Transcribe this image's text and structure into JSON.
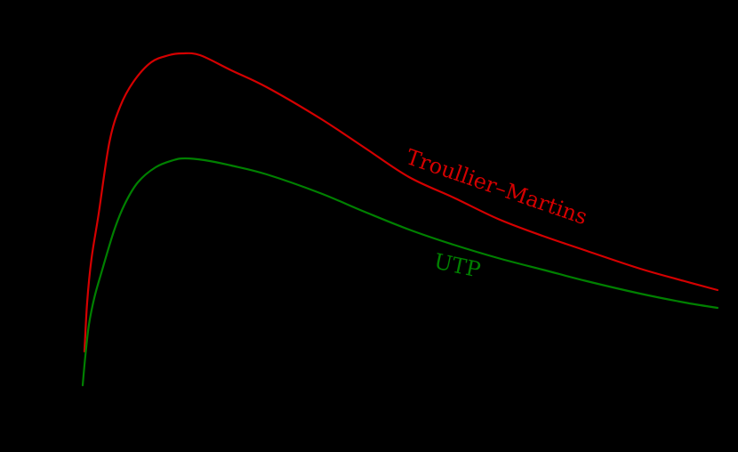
{
  "chart_data": {
    "type": "line",
    "title": "",
    "xlabel": "",
    "ylabel": "",
    "background": "#000000",
    "grid": false,
    "legend": "inline labels",
    "series": [
      {
        "name": "Troullier–Martins",
        "color": "#d40000",
        "label_pos": {
          "x": 455,
          "y": 183,
          "rotate": 19
        },
        "points": [
          [
            95,
            395
          ],
          [
            98,
            340
          ],
          [
            103,
            290
          ],
          [
            111,
            240
          ],
          [
            123,
            160
          ],
          [
            135,
            120
          ],
          [
            150,
            92
          ],
          [
            170,
            70
          ],
          [
            190,
            62
          ],
          [
            205,
            60
          ],
          [
            225,
            62
          ],
          [
            260,
            79
          ],
          [
            300,
            98
          ],
          [
            360,
            133
          ],
          [
            410,
            166
          ],
          [
            460,
            199
          ],
          [
            510,
            222
          ],
          [
            560,
            246
          ],
          [
            610,
            265
          ],
          [
            660,
            282
          ],
          [
            720,
            302
          ],
          [
            770,
            316
          ],
          [
            807,
            326
          ]
        ]
      },
      {
        "name": "UTP",
        "color": "#008000",
        "label_pos": {
          "x": 487,
          "y": 301,
          "rotate": 12
        },
        "points": [
          [
            93,
            433
          ],
          [
            96,
            400
          ],
          [
            100,
            365
          ],
          [
            106,
            335
          ],
          [
            113,
            310
          ],
          [
            128,
            260
          ],
          [
            140,
            230
          ],
          [
            155,
            205
          ],
          [
            175,
            188
          ],
          [
            195,
            180
          ],
          [
            208,
            178
          ],
          [
            230,
            180
          ],
          [
            260,
            186
          ],
          [
            300,
            196
          ],
          [
            360,
            217
          ],
          [
            410,
            238
          ],
          [
            460,
            258
          ],
          [
            510,
            275
          ],
          [
            560,
            290
          ],
          [
            610,
            303
          ],
          [
            660,
            316
          ],
          [
            720,
            330
          ],
          [
            770,
            340
          ],
          [
            807,
            346
          ]
        ]
      }
    ]
  }
}
